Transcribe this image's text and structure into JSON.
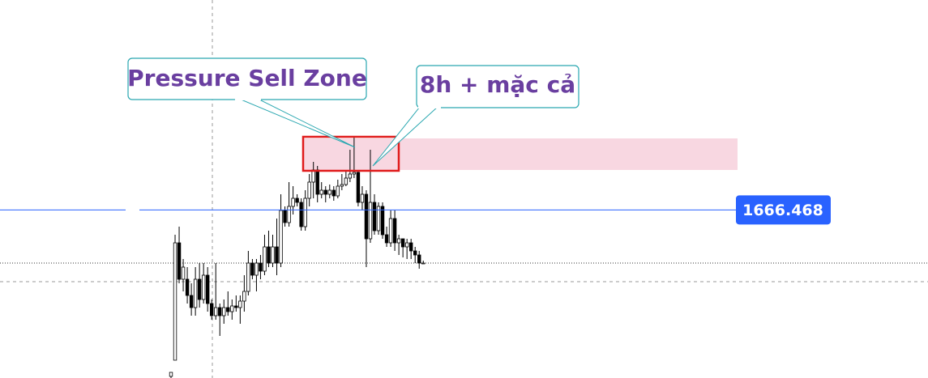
{
  "chart_data": {
    "type": "candlestick",
    "ylim": [
      1645.7,
      1692.4
    ],
    "price_line": {
      "value": 1666.468,
      "color": "#2962ff"
    },
    "zone": {
      "values": [
        1671.4,
        1675.3
      ],
      "color": "#f8d7e1"
    },
    "annotations": [
      "Pressure Sell Zone",
      "8h + mặc cả"
    ],
    "up_color": "#ffffff",
    "down_color": "#000000",
    "series": [
      {
        "name": "open",
        "values": [
          1645.9,
          1647.9,
          1662.4,
          1657.9,
          1657.9,
          1655.9,
          1654.4,
          1657.9,
          1655.4,
          1658.4,
          1654.9,
          1653.4,
          1654.4,
          1653.4,
          1654.4,
          1653.9,
          1654.6,
          1654.4,
          1655.2,
          1656.4,
          1659.9,
          1658.4,
          1659.9,
          1658.9,
          1661.9,
          1659.9,
          1661.9,
          1659.9,
          1666.4,
          1664.9,
          1666.9,
          1667.9,
          1667.4,
          1664.4,
          1667.9,
          1669.9,
          1671.4,
          1668.4,
          1668.9,
          1668.4,
          1668.9,
          1668.2,
          1669.4,
          1669.6,
          1670.4,
          1670.9,
          1671.1,
          1667.4,
          1668.4,
          1662.9,
          1667.4,
          1663.9,
          1666.9,
          1663.4,
          1662.4,
          1665.4,
          1662.4,
          1662.9,
          1661.9,
          1662.4,
          1661.4,
          1660.9,
          1659.9
        ]
      },
      {
        "name": "high",
        "values": [
          1645.9,
          1663.4,
          1664.4,
          1660.4,
          1659.4,
          1657.4,
          1659.4,
          1659.9,
          1659.9,
          1659.4,
          1655.4,
          1659.9,
          1654.9,
          1655.4,
          1656.4,
          1655.4,
          1655.9,
          1655.9,
          1658.4,
          1661.4,
          1660.4,
          1660.4,
          1660.9,
          1663.4,
          1663.9,
          1663.4,
          1665.4,
          1668.4,
          1666.9,
          1669.9,
          1669.4,
          1668.4,
          1667.9,
          1668.9,
          1670.9,
          1672.4,
          1671.9,
          1669.9,
          1669.4,
          1669.6,
          1669.4,
          1670.2,
          1670.9,
          1671.4,
          1673.9,
          1675.4,
          1671.4,
          1669.4,
          1668.9,
          1673.9,
          1668.4,
          1667.4,
          1667.4,
          1664.4,
          1666.4,
          1666.4,
          1663.4,
          1662.9,
          1662.9,
          1662.9,
          1661.9,
          1661.4,
          1660.2
        ]
      },
      {
        "name": "low",
        "values": [
          1645.7,
          1647.9,
          1657.4,
          1656.4,
          1654.9,
          1653.4,
          1653.4,
          1654.4,
          1654.9,
          1653.9,
          1652.9,
          1652.9,
          1650.9,
          1652.4,
          1653.4,
          1652.9,
          1653.9,
          1652.4,
          1653.9,
          1655.9,
          1657.9,
          1656.4,
          1657.9,
          1658.4,
          1659.4,
          1659.4,
          1658.4,
          1659.4,
          1664.4,
          1664.4,
          1665.9,
          1666.9,
          1663.9,
          1663.9,
          1666.9,
          1667.9,
          1667.4,
          1667.9,
          1667.4,
          1667.9,
          1667.6,
          1667.9,
          1668.9,
          1669.4,
          1669.9,
          1670.4,
          1666.9,
          1666.4,
          1659.4,
          1662.4,
          1663.4,
          1663.4,
          1662.9,
          1661.9,
          1661.9,
          1661.4,
          1660.9,
          1660.6,
          1660.4,
          1660.4,
          1659.9,
          1659.2,
          1659.8
        ]
      },
      {
        "name": "close",
        "values": [
          1646.4,
          1662.4,
          1657.9,
          1659.4,
          1655.9,
          1654.4,
          1657.9,
          1655.4,
          1658.4,
          1654.9,
          1653.4,
          1654.4,
          1653.4,
          1654.4,
          1653.9,
          1654.6,
          1654.4,
          1655.2,
          1656.4,
          1659.9,
          1658.4,
          1659.9,
          1658.9,
          1661.9,
          1659.9,
          1661.9,
          1659.9,
          1666.4,
          1664.9,
          1666.9,
          1667.9,
          1667.4,
          1664.4,
          1667.9,
          1669.9,
          1671.4,
          1668.4,
          1668.9,
          1668.4,
          1668.9,
          1668.2,
          1669.4,
          1669.6,
          1670.4,
          1670.9,
          1671.1,
          1667.4,
          1668.4,
          1662.9,
          1667.4,
          1663.9,
          1666.9,
          1663.4,
          1662.4,
          1665.4,
          1662.4,
          1662.9,
          1661.9,
          1662.4,
          1661.4,
          1660.9,
          1659.9,
          1659.9
        ]
      }
    ]
  }
}
